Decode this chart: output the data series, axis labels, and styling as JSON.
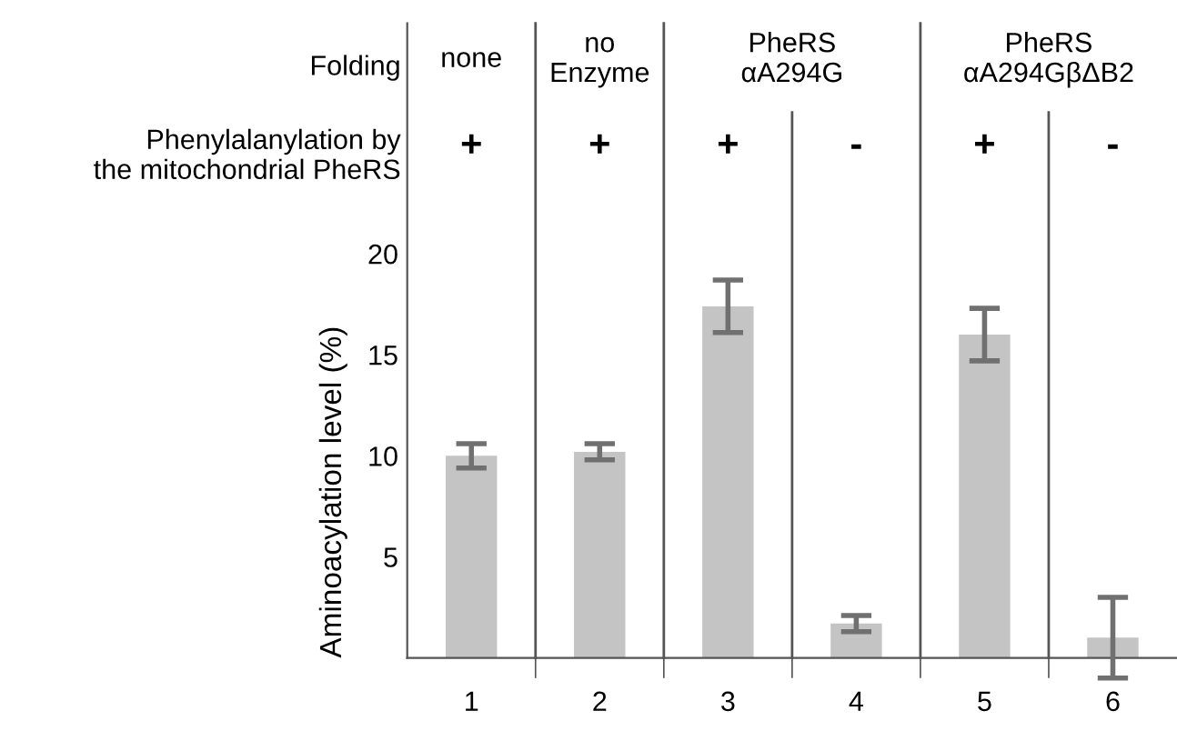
{
  "chart_data": {
    "type": "bar",
    "ylabel": "Aminoacylation level (%)",
    "categories": [
      "1",
      "2",
      "3",
      "4",
      "5",
      "6"
    ],
    "values": [
      10.0,
      10.2,
      17.4,
      1.7,
      16.0,
      1.0
    ],
    "errors": [
      0.6,
      0.4,
      1.3,
      0.4,
      1.3,
      2.0
    ],
    "color": "#c4c4c4",
    "ylim": [
      0,
      31.4
    ],
    "yticks": [
      5,
      10,
      15,
      20
    ],
    "annotations": [
      "Folding",
      "none",
      "no\nEnzyme",
      "PheRS\nαA294G",
      "PheRS\nαA294GβΔB2",
      "Phenylalanylation by\nthe mitochondrial PheRS",
      "+",
      "+",
      "+",
      "-",
      "+",
      "-"
    ],
    "grid": false
  }
}
